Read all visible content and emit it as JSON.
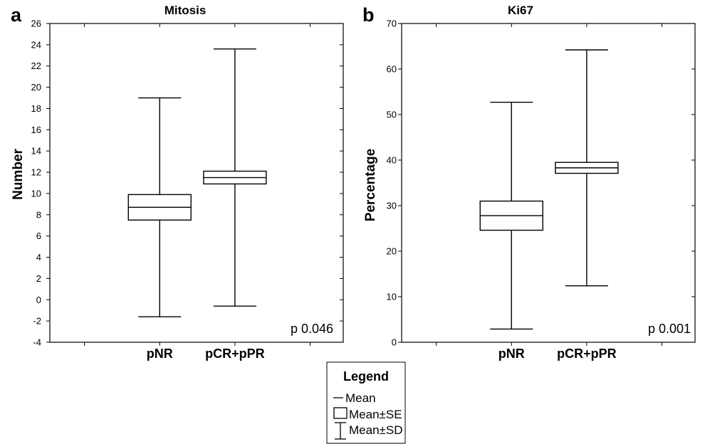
{
  "chart_data": [
    {
      "panel_label": "a",
      "type": "box",
      "title": "Mitosis",
      "ylabel": "Number",
      "categories": [
        "pNR",
        "pCR+pPR"
      ],
      "mean": [
        8.7,
        11.5
      ],
      "se": [
        1.2,
        0.6
      ],
      "sd": [
        10.3,
        12.1
      ],
      "ylim": [
        -4,
        26
      ],
      "yticks": [
        -4,
        -2,
        0,
        2,
        4,
        6,
        8,
        10,
        12,
        14,
        16,
        18,
        20,
        22,
        24,
        26
      ],
      "annotation": "p 0.046",
      "grid": false
    },
    {
      "panel_label": "b",
      "type": "box",
      "title": "Ki67",
      "ylabel": "Percentage",
      "categories": [
        "pNR",
        "pCR+pPR"
      ],
      "mean": [
        27.8,
        38.3
      ],
      "se": [
        3.2,
        1.2
      ],
      "sd": [
        24.9,
        25.9
      ],
      "ylim": [
        0,
        70
      ],
      "yticks": [
        0,
        10,
        20,
        30,
        40,
        50,
        60,
        70
      ],
      "annotation": "p 0.001",
      "grid": false
    }
  ],
  "legend": {
    "title": "Legend",
    "placement": "bottom-center",
    "items": [
      {
        "label": "Mean",
        "icon": "mean-line-icon"
      },
      {
        "label": "Mean±SE",
        "icon": "se-box-icon"
      },
      {
        "label": "Mean±SD",
        "icon": "sd-whisker-icon"
      }
    ]
  }
}
